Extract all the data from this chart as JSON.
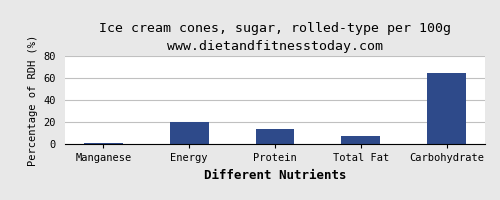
{
  "title": "Ice cream cones, sugar, rolled-type per 100g",
  "subtitle": "www.dietandfitnesstoday.com",
  "xlabel": "Different Nutrients",
  "ylabel": "Percentage of RDH (%)",
  "categories": [
    "Manganese",
    "Energy",
    "Protein",
    "Total Fat",
    "Carbohydrate"
  ],
  "values": [
    0.5,
    20,
    14,
    7,
    65
  ],
  "bar_color": "#2e4a8a",
  "ylim": [
    0,
    80
  ],
  "yticks": [
    0,
    20,
    40,
    60,
    80
  ],
  "background_color": "#e8e8e8",
  "plot_bg_color": "#ffffff",
  "grid_color": "#c0c0c0",
  "title_fontsize": 9.5,
  "subtitle_fontsize": 8.5,
  "xlabel_fontsize": 9,
  "ylabel_fontsize": 7.5,
  "tick_fontsize": 7.5
}
